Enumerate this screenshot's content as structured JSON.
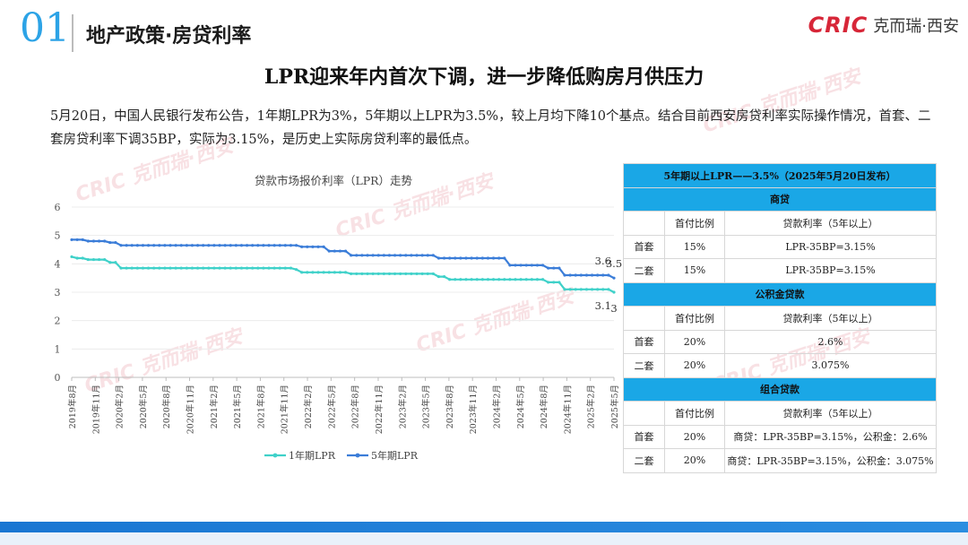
{
  "header": {
    "section_number": "01",
    "section_title": "地产政策·房贷利率",
    "logo_en": "CRIC",
    "logo_cn": "克而瑞·西安"
  },
  "headline": "LPR迎来年内首次下调，进一步降低购房月供压力",
  "paragraph": "5月20日，中国人民银行发布公告，1年期LPR为3%，5年期以上LPR为3.5%，较上月均下降10个基点。结合目前西安房贷利率实际操作情况，首套、二套房贷利率下调35BP，实际为3.15%，是历史上实际房贷利率的最低点。",
  "watermark_text": "CRIC 克而瑞·西安",
  "colors": {
    "accent": "#2ca3e6",
    "brand_red": "#d72638",
    "series_1y": "#3fd1c9",
    "series_5y": "#3b7dd8",
    "table_header": "#1aa7e6"
  },
  "chart_data": {
    "type": "line",
    "title": "贷款市场报价利率（LPR）走势",
    "ylim": [
      0,
      6
    ],
    "yticks": [
      "0",
      "1",
      "2",
      "3",
      "4",
      "5",
      "6"
    ],
    "tick_labels": [
      "2019年8月",
      "2019年11月",
      "2020年2月",
      "2020年5月",
      "2020年8月",
      "2020年11月",
      "2021年2月",
      "2021年5月",
      "2021年8月",
      "2021年11月",
      "2022年2月",
      "2022年5月",
      "2022年8月",
      "2022年11月",
      "2023年2月",
      "2023年5月",
      "2023年8月",
      "2023年11月",
      "2024年2月",
      "2024年5月",
      "2024年8月",
      "2024年11月",
      "2025年2月",
      "2025年5月"
    ],
    "series": [
      {
        "name": "1年期LPR",
        "color": "#3fd1c9",
        "values": [
          4.25,
          4.2,
          4.2,
          4.15,
          4.15,
          4.15,
          4.15,
          4.05,
          4.05,
          3.85,
          3.85,
          3.85,
          3.85,
          3.85,
          3.85,
          3.85,
          3.85,
          3.85,
          3.85,
          3.85,
          3.85,
          3.85,
          3.85,
          3.85,
          3.85,
          3.85,
          3.85,
          3.85,
          3.85,
          3.85,
          3.85,
          3.85,
          3.85,
          3.85,
          3.85,
          3.85,
          3.85,
          3.85,
          3.85,
          3.85,
          3.85,
          3.8,
          3.7,
          3.7,
          3.7,
          3.7,
          3.7,
          3.7,
          3.7,
          3.7,
          3.7,
          3.65,
          3.65,
          3.65,
          3.65,
          3.65,
          3.65,
          3.65,
          3.65,
          3.65,
          3.65,
          3.65,
          3.65,
          3.65,
          3.65,
          3.65,
          3.65,
          3.55,
          3.55,
          3.45,
          3.45,
          3.45,
          3.45,
          3.45,
          3.45,
          3.45,
          3.45,
          3.45,
          3.45,
          3.45,
          3.45,
          3.45,
          3.45,
          3.45,
          3.45,
          3.45,
          3.45,
          3.35,
          3.35,
          3.35,
          3.1,
          3.1,
          3.1,
          3.1,
          3.1,
          3.1,
          3.1,
          3.1,
          3.1,
          3.0
        ]
      },
      {
        "name": "5年期LPR",
        "color": "#3b7dd8",
        "values": [
          4.85,
          4.85,
          4.85,
          4.8,
          4.8,
          4.8,
          4.8,
          4.75,
          4.75,
          4.65,
          4.65,
          4.65,
          4.65,
          4.65,
          4.65,
          4.65,
          4.65,
          4.65,
          4.65,
          4.65,
          4.65,
          4.65,
          4.65,
          4.65,
          4.65,
          4.65,
          4.65,
          4.65,
          4.65,
          4.65,
          4.65,
          4.65,
          4.65,
          4.65,
          4.65,
          4.65,
          4.65,
          4.65,
          4.65,
          4.65,
          4.65,
          4.65,
          4.6,
          4.6,
          4.6,
          4.6,
          4.6,
          4.45,
          4.45,
          4.45,
          4.45,
          4.3,
          4.3,
          4.3,
          4.3,
          4.3,
          4.3,
          4.3,
          4.3,
          4.3,
          4.3,
          4.3,
          4.3,
          4.3,
          4.3,
          4.3,
          4.3,
          4.2,
          4.2,
          4.2,
          4.2,
          4.2,
          4.2,
          4.2,
          4.2,
          4.2,
          4.2,
          4.2,
          4.2,
          4.2,
          3.95,
          3.95,
          3.95,
          3.95,
          3.95,
          3.95,
          3.95,
          3.85,
          3.85,
          3.85,
          3.6,
          3.6,
          3.6,
          3.6,
          3.6,
          3.6,
          3.6,
          3.6,
          3.6,
          3.5
        ]
      }
    ],
    "annotations": [
      {
        "text": "3.6",
        "series": 1,
        "index": 97
      },
      {
        "text": "3.5",
        "series": 1,
        "index": 99
      },
      {
        "text": "3.1",
        "series": 0,
        "index": 97
      },
      {
        "text": "3",
        "series": 0,
        "index": 99
      }
    ],
    "legend": [
      "1年期LPR",
      "5年期LPR"
    ],
    "legend_position": "bottom",
    "grid": true
  },
  "table": {
    "title": "5年期以上LPR——3.5%（2025年5月20日发布）",
    "sections": [
      {
        "name": "商贷",
        "col_headers": [
          "",
          "首付比例",
          "贷款利率（5年以上）"
        ],
        "rows": [
          [
            "首套",
            "15%",
            "LPR-35BP=3.15%"
          ],
          [
            "二套",
            "15%",
            "LPR-35BP=3.15%"
          ]
        ]
      },
      {
        "name": "公积金贷款",
        "col_headers": [
          "",
          "首付比例",
          "贷款利率（5年以上）"
        ],
        "rows": [
          [
            "首套",
            "20%",
            "2.6%"
          ],
          [
            "二套",
            "20%",
            "3.075%"
          ]
        ]
      },
      {
        "name": "组合贷款",
        "col_headers": [
          "",
          "首付比例",
          "贷款利率（5年以上）"
        ],
        "rows": [
          [
            "首套",
            "20%",
            "商贷：LPR-35BP=3.15%，公积金：2.6%"
          ],
          [
            "二套",
            "20%",
            "商贷：LPR-35BP=3.15%，公积金：3.075%"
          ]
        ]
      }
    ]
  }
}
